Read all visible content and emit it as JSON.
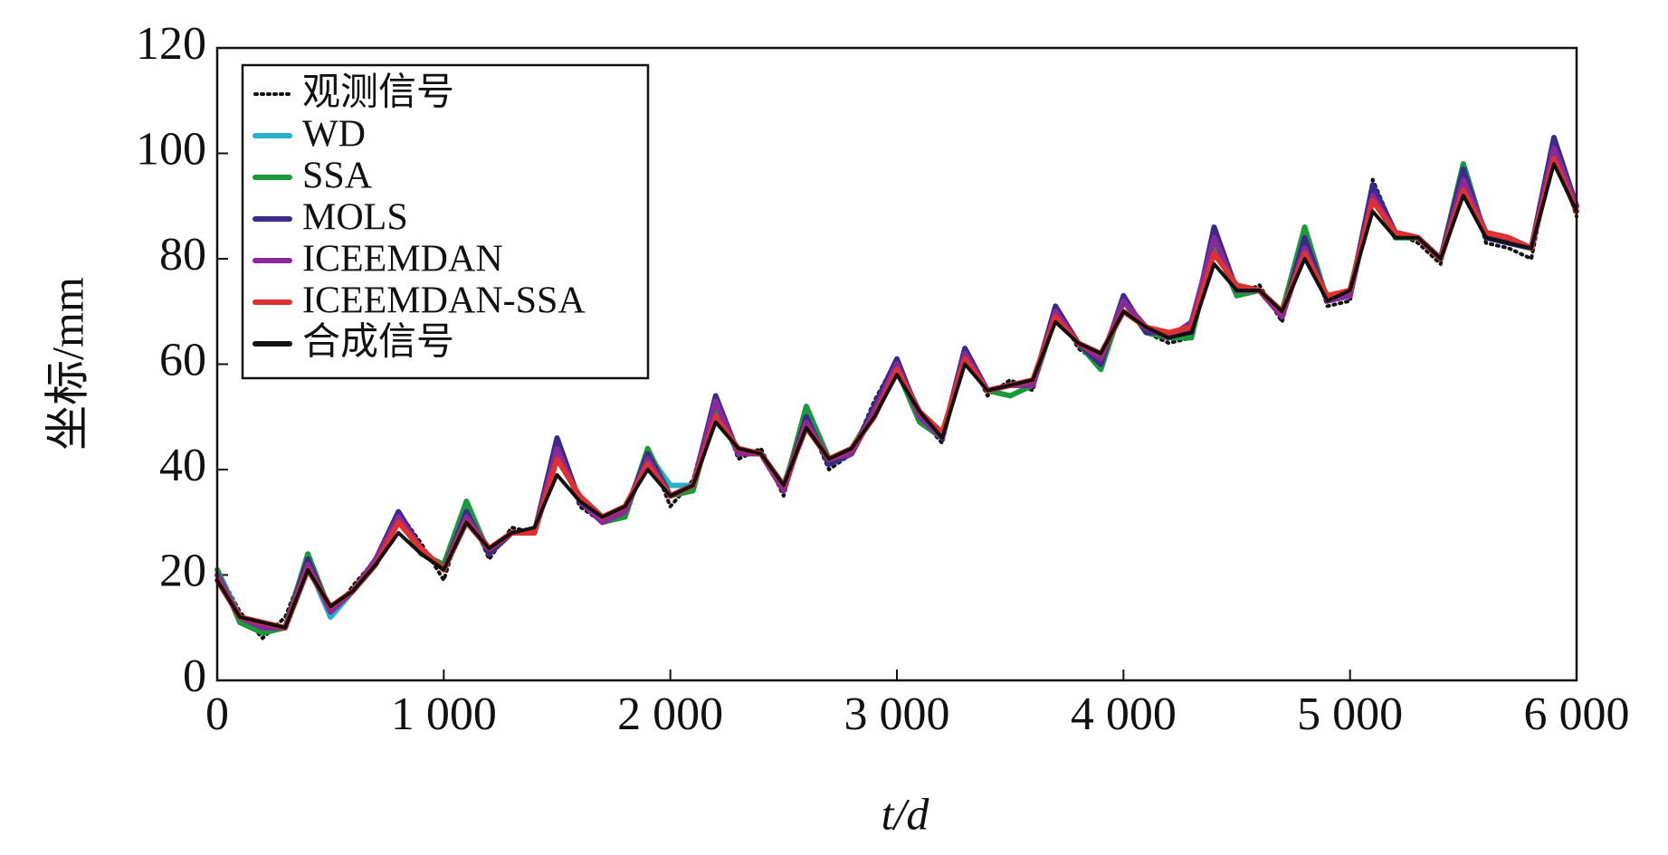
{
  "chart_data": {
    "type": "line",
    "ylabel": "坐标/mm",
    "xlabel": "t/d",
    "xlim": [
      0,
      6000
    ],
    "xticks": [
      0,
      {
        "value": 1000,
        "label": "1 000"
      },
      {
        "value": 2000,
        "label": "2 000"
      },
      {
        "value": 3000,
        "label": "3 000"
      },
      {
        "value": 4000,
        "label": "4 000"
      },
      {
        "value": 5000,
        "label": "5 000"
      },
      {
        "value": 6000,
        "label": "6 000"
      }
    ],
    "ylim": [
      0,
      120
    ],
    "yticks": [
      0,
      20,
      40,
      60,
      80,
      100,
      120
    ],
    "legend": "upper left",
    "x": [
      0,
      100,
      200,
      300,
      400,
      500,
      600,
      700,
      800,
      900,
      1000,
      1100,
      1200,
      1300,
      1400,
      1500,
      1600,
      1700,
      1800,
      1900,
      2000,
      2100,
      2200,
      2300,
      2400,
      2500,
      2600,
      2700,
      2800,
      2900,
      3000,
      3100,
      3200,
      3300,
      3400,
      3500,
      3600,
      3700,
      3800,
      3900,
      4000,
      4100,
      4200,
      4300,
      4400,
      4500,
      4600,
      4700,
      4800,
      4900,
      5000,
      5100,
      5200,
      5300,
      5400,
      5500,
      5600,
      5700,
      5800,
      5900,
      6000
    ],
    "series": [
      {
        "name": "观测信号",
        "color": "#111111",
        "style": "dotted",
        "values": [
          21,
          13,
          8,
          12,
          23,
          12,
          18,
          23,
          32,
          26,
          19,
          33,
          23,
          29,
          28,
          45,
          33,
          30,
          31,
          44,
          33,
          38,
          54,
          42,
          44,
          35,
          50,
          40,
          43,
          53,
          61,
          50,
          45,
          63,
          54,
          57,
          55,
          71,
          63,
          60,
          73,
          66,
          64,
          65,
          84,
          73,
          75,
          68,
          84,
          71,
          72,
          95,
          85,
          83,
          79,
          98,
          83,
          82,
          80,
          101,
          88
        ]
      },
      {
        "name": "WD",
        "color": "#2ab0c8",
        "style": "solid",
        "values": [
          21,
          12,
          10,
          10,
          22,
          12,
          17,
          23,
          31,
          25,
          21,
          32,
          24,
          28,
          28,
          45,
          34,
          30,
          32,
          43,
          37,
          37,
          53,
          43,
          43,
          37,
          50,
          41,
          43,
          52,
          60,
          51,
          46,
          62,
          55,
          56,
          56,
          70,
          64,
          60,
          72,
          67,
          66,
          66,
          85,
          74,
          74,
          69,
          83,
          72,
          73,
          93,
          85,
          84,
          80,
          98,
          84,
          83,
          82,
          102,
          90
        ]
      },
      {
        "name": "SSA",
        "color": "#1a9a3a",
        "style": "solid",
        "values": [
          21,
          11,
          9,
          10,
          24,
          13,
          17,
          22,
          31,
          24,
          22,
          34,
          24,
          28,
          28,
          44,
          34,
          30,
          31,
          44,
          35,
          36,
          52,
          43,
          43,
          36,
          52,
          42,
          44,
          51,
          59,
          49,
          46,
          62,
          55,
          54,
          56,
          69,
          64,
          59,
          72,
          66,
          65,
          65,
          83,
          73,
          74,
          70,
          86,
          72,
          74,
          92,
          84,
          84,
          80,
          98,
          84,
          83,
          82,
          101,
          90
        ]
      },
      {
        "name": "MOLS",
        "color": "#3b2a8a",
        "style": "solid",
        "values": [
          20,
          12,
          10,
          10,
          23,
          13,
          17,
          23,
          32,
          25,
          21,
          32,
          24,
          28,
          28,
          46,
          34,
          30,
          32,
          43,
          35,
          37,
          54,
          43,
          43,
          36,
          50,
          41,
          43,
          52,
          61,
          50,
          46,
          63,
          55,
          56,
          56,
          71,
          64,
          60,
          73,
          66,
          66,
          66,
          86,
          74,
          74,
          69,
          84,
          72,
          73,
          94,
          85,
          84,
          80,
          97,
          84,
          83,
          82,
          103,
          90
        ]
      },
      {
        "name": "ICEEMDAN",
        "color": "#8a2a9a",
        "style": "solid",
        "values": [
          20,
          12,
          10,
          10,
          22,
          13,
          17,
          23,
          31,
          25,
          21,
          31,
          25,
          28,
          28,
          44,
          34,
          30,
          32,
          42,
          35,
          37,
          53,
          43,
          43,
          36,
          49,
          42,
          43,
          51,
          60,
          50,
          46,
          62,
          55,
          56,
          56,
          70,
          64,
          61,
          72,
          67,
          65,
          68,
          84,
          74,
          74,
          69,
          82,
          72,
          73,
          92,
          85,
          84,
          80,
          95,
          85,
          84,
          82,
          101,
          90
        ]
      },
      {
        "name": "ICEEMDAN-SSA",
        "color": "#e03030",
        "style": "solid",
        "values": [
          19,
          12,
          11,
          10,
          21,
          14,
          17,
          22,
          30,
          25,
          21,
          30,
          25,
          28,
          28,
          42,
          35,
          31,
          33,
          41,
          35,
          37,
          50,
          44,
          43,
          37,
          48,
          42,
          44,
          50,
          59,
          51,
          47,
          61,
          55,
          56,
          57,
          69,
          64,
          62,
          70,
          67,
          66,
          67,
          81,
          75,
          74,
          70,
          81,
          73,
          74,
          91,
          85,
          84,
          80,
          93,
          85,
          84,
          82,
          99,
          89
        ]
      },
      {
        "name": "合成信号",
        "color": "#111111",
        "style": "solid",
        "values": [
          19,
          12,
          11,
          10,
          21,
          14,
          17,
          22,
          28,
          24,
          21,
          30,
          25,
          28,
          29,
          39,
          34,
          31,
          33,
          40,
          35,
          37,
          49,
          44,
          43,
          37,
          48,
          42,
          44,
          50,
          58,
          51,
          46,
          60,
          55,
          56,
          57,
          68,
          64,
          62,
          70,
          67,
          65,
          66,
          79,
          74,
          74,
          70,
          80,
          72,
          74,
          89,
          84,
          84,
          80,
          92,
          84,
          83,
          82,
          98,
          89
        ]
      }
    ]
  }
}
